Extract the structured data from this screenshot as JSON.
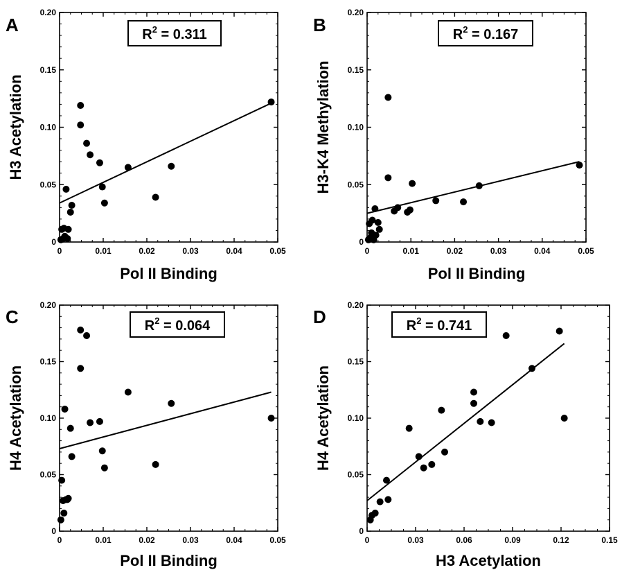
{
  "chart_data": [
    {
      "panel": "A",
      "type": "scatter",
      "xlabel": "Pol II Binding",
      "ylabel": "H3 Acetylation",
      "xlim": [
        0,
        0.05
      ],
      "ylim": [
        0,
        0.2
      ],
      "xticks": [
        "0",
        "0.01",
        "0.02",
        "0.03",
        "0.04",
        "0.05"
      ],
      "yticks": [
        "0",
        "0.05",
        "0.10",
        "0.15",
        "0.20"
      ],
      "annotation": {
        "prefix": "R",
        "sup": "2",
        "suffix": " = 0.311"
      },
      "points": [
        {
          "x": 0.0003,
          "y": 0.002
        },
        {
          "x": 0.0005,
          "y": 0.011
        },
        {
          "x": 0.0008,
          "y": 0.003
        },
        {
          "x": 0.001,
          "y": 0.012
        },
        {
          "x": 0.0012,
          "y": 0.005
        },
        {
          "x": 0.0015,
          "y": 0.046
        },
        {
          "x": 0.0018,
          "y": 0.003
        },
        {
          "x": 0.002,
          "y": 0.011
        },
        {
          "x": 0.0025,
          "y": 0.026
        },
        {
          "x": 0.0028,
          "y": 0.032
        },
        {
          "x": 0.0048,
          "y": 0.119
        },
        {
          "x": 0.0048,
          "y": 0.102
        },
        {
          "x": 0.0062,
          "y": 0.086
        },
        {
          "x": 0.007,
          "y": 0.076
        },
        {
          "x": 0.0092,
          "y": 0.069
        },
        {
          "x": 0.0098,
          "y": 0.048
        },
        {
          "x": 0.0103,
          "y": 0.034
        },
        {
          "x": 0.0157,
          "y": 0.065
        },
        {
          "x": 0.022,
          "y": 0.039
        },
        {
          "x": 0.0256,
          "y": 0.066
        },
        {
          "x": 0.0485,
          "y": 0.122
        }
      ],
      "fit_line": {
        "x": [
          0,
          0.0485
        ],
        "y": [
          0.034,
          0.121
        ]
      }
    },
    {
      "panel": "B",
      "type": "scatter",
      "xlabel": "Pol II Binding",
      "ylabel": "H3-K4 Methylation",
      "xlim": [
        0,
        0.05
      ],
      "ylim": [
        0,
        0.2
      ],
      "xticks": [
        "0",
        "0.01",
        "0.02",
        "0.03",
        "0.04",
        "0.05"
      ],
      "yticks": [
        "0",
        "0.05",
        "0.10",
        "0.15",
        "0.20"
      ],
      "annotation": {
        "prefix": "R",
        "sup": "2",
        "suffix": " = 0.167"
      },
      "points": [
        {
          "x": 0.0003,
          "y": 0.002
        },
        {
          "x": 0.0005,
          "y": 0.016
        },
        {
          "x": 0.0008,
          "y": 0.004
        },
        {
          "x": 0.001,
          "y": 0.008
        },
        {
          "x": 0.0012,
          "y": 0.019
        },
        {
          "x": 0.0015,
          "y": 0.002
        },
        {
          "x": 0.0018,
          "y": 0.029
        },
        {
          "x": 0.002,
          "y": 0.006
        },
        {
          "x": 0.0025,
          "y": 0.017
        },
        {
          "x": 0.0028,
          "y": 0.011
        },
        {
          "x": 0.0048,
          "y": 0.126
        },
        {
          "x": 0.0048,
          "y": 0.056
        },
        {
          "x": 0.0062,
          "y": 0.027
        },
        {
          "x": 0.007,
          "y": 0.03
        },
        {
          "x": 0.0092,
          "y": 0.026
        },
        {
          "x": 0.0098,
          "y": 0.028
        },
        {
          "x": 0.0103,
          "y": 0.051
        },
        {
          "x": 0.0157,
          "y": 0.036
        },
        {
          "x": 0.022,
          "y": 0.035
        },
        {
          "x": 0.0256,
          "y": 0.049
        },
        {
          "x": 0.0485,
          "y": 0.067
        }
      ],
      "fit_line": {
        "x": [
          0,
          0.0485
        ],
        "y": [
          0.025,
          0.07
        ]
      }
    },
    {
      "panel": "C",
      "type": "scatter",
      "xlabel": "Pol II Binding",
      "ylabel": "H4 Acetylation",
      "xlim": [
        0,
        0.05
      ],
      "ylim": [
        0,
        0.2
      ],
      "xticks": [
        "0",
        "0.01",
        "0.02",
        "0.03",
        "0.04",
        "0.05"
      ],
      "yticks": [
        "0",
        "0.05",
        "0.10",
        "0.15",
        "0.20"
      ],
      "annotation": {
        "prefix": "R",
        "sup": "2",
        "suffix": " = 0.064"
      },
      "points": [
        {
          "x": 0.0003,
          "y": 0.01
        },
        {
          "x": 0.0005,
          "y": 0.045
        },
        {
          "x": 0.0008,
          "y": 0.027
        },
        {
          "x": 0.001,
          "y": 0.016
        },
        {
          "x": 0.0012,
          "y": 0.108
        },
        {
          "x": 0.0015,
          "y": 0.028
        },
        {
          "x": 0.0018,
          "y": 0.028
        },
        {
          "x": 0.002,
          "y": 0.029
        },
        {
          "x": 0.0025,
          "y": 0.091
        },
        {
          "x": 0.0028,
          "y": 0.066
        },
        {
          "x": 0.0048,
          "y": 0.178
        },
        {
          "x": 0.0048,
          "y": 0.144
        },
        {
          "x": 0.0062,
          "y": 0.173
        },
        {
          "x": 0.007,
          "y": 0.096
        },
        {
          "x": 0.0092,
          "y": 0.097
        },
        {
          "x": 0.0098,
          "y": 0.071
        },
        {
          "x": 0.0103,
          "y": 0.056
        },
        {
          "x": 0.0157,
          "y": 0.123
        },
        {
          "x": 0.022,
          "y": 0.059
        },
        {
          "x": 0.0256,
          "y": 0.113
        },
        {
          "x": 0.0485,
          "y": 0.1
        }
      ],
      "fit_line": {
        "x": [
          0,
          0.0485
        ],
        "y": [
          0.073,
          0.123
        ]
      }
    },
    {
      "panel": "D",
      "type": "scatter",
      "xlabel": "H3 Acetylation",
      "ylabel": "H4 Acetylation",
      "xlim": [
        0,
        0.15
      ],
      "ylim": [
        0,
        0.2
      ],
      "xticks": [
        "0",
        "0.03",
        "0.06",
        "0.09",
        "0.12",
        "0.15"
      ],
      "yticks": [
        "0",
        "0.05",
        "0.10",
        "0.15",
        "0.20"
      ],
      "annotation": {
        "prefix": "R",
        "sup": "2",
        "suffix": " = 0.741"
      },
      "points": [
        {
          "x": 0.002,
          "y": 0.01
        },
        {
          "x": 0.003,
          "y": 0.014
        },
        {
          "x": 0.005,
          "y": 0.016
        },
        {
          "x": 0.008,
          "y": 0.026
        },
        {
          "x": 0.012,
          "y": 0.045
        },
        {
          "x": 0.013,
          "y": 0.028
        },
        {
          "x": 0.026,
          "y": 0.091
        },
        {
          "x": 0.032,
          "y": 0.066
        },
        {
          "x": 0.035,
          "y": 0.056
        },
        {
          "x": 0.04,
          "y": 0.059
        },
        {
          "x": 0.046,
          "y": 0.107
        },
        {
          "x": 0.048,
          "y": 0.07
        },
        {
          "x": 0.066,
          "y": 0.123
        },
        {
          "x": 0.066,
          "y": 0.113
        },
        {
          "x": 0.07,
          "y": 0.097
        },
        {
          "x": 0.077,
          "y": 0.096
        },
        {
          "x": 0.086,
          "y": 0.173
        },
        {
          "x": 0.102,
          "y": 0.144
        },
        {
          "x": 0.119,
          "y": 0.177
        },
        {
          "x": 0.122,
          "y": 0.1
        }
      ],
      "fit_line": {
        "x": [
          0,
          0.122
        ],
        "y": [
          0.027,
          0.166
        ]
      }
    }
  ]
}
